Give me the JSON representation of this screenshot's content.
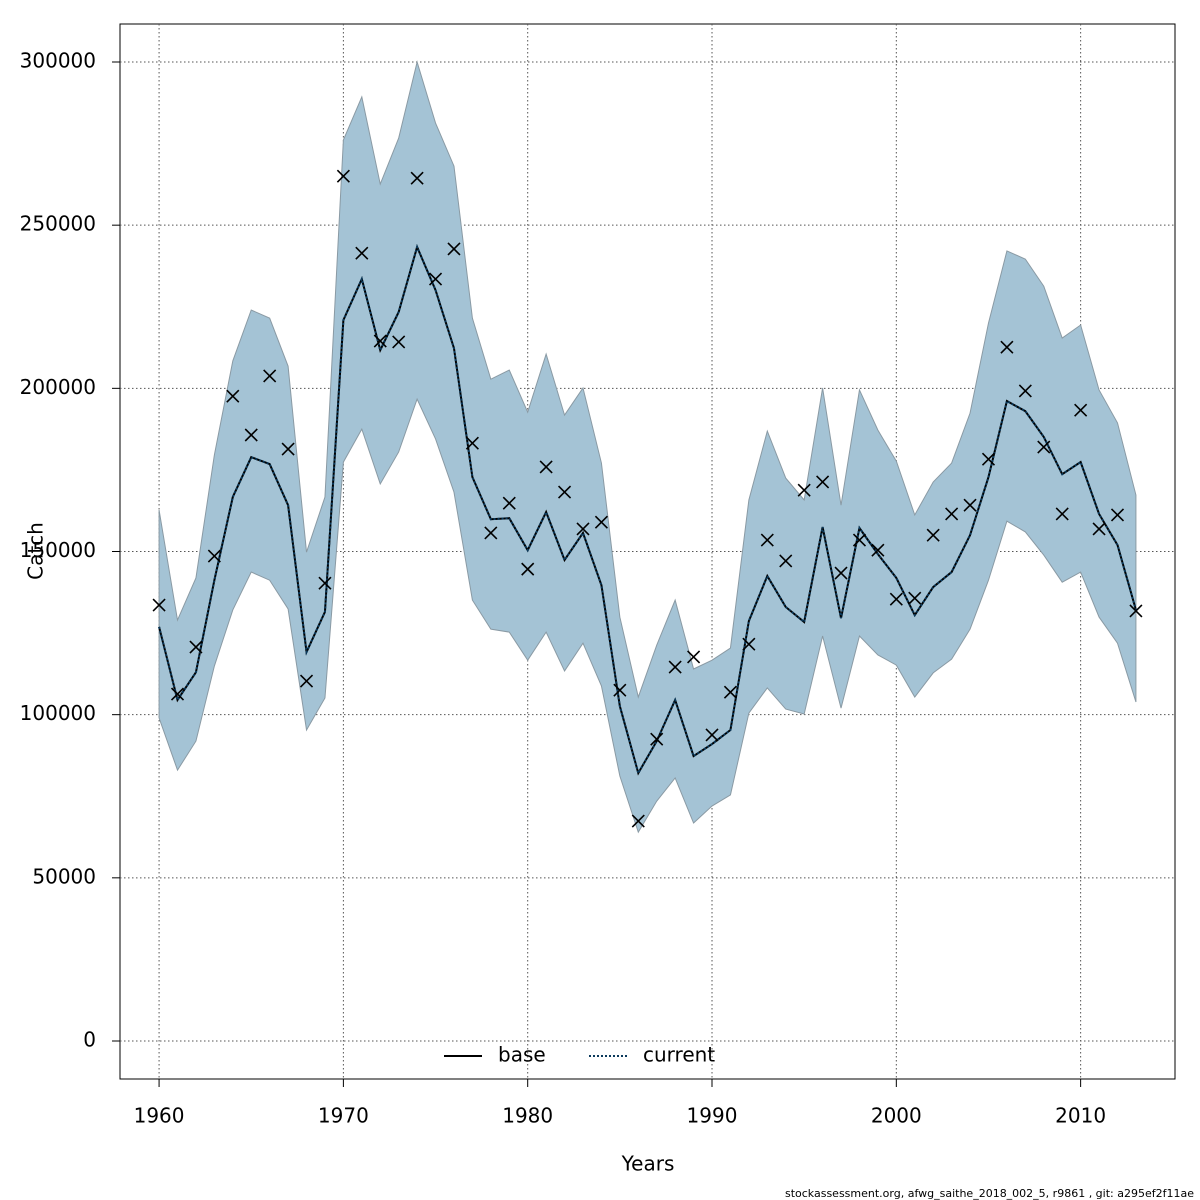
{
  "chart_data": {
    "type": "line",
    "x_label": "Years",
    "y_label": "Catch",
    "footer": "stockassessment.org, afwg_saithe_2018_002_5, r9861 , git: a295ef2f11ae",
    "x": [
      1960,
      1961,
      1962,
      1963,
      1964,
      1965,
      1966,
      1967,
      1968,
      1969,
      1970,
      1971,
      1972,
      1973,
      1974,
      1975,
      1976,
      1977,
      1978,
      1979,
      1980,
      1981,
      1982,
      1983,
      1984,
      1985,
      1986,
      1987,
      1988,
      1989,
      1990,
      1991,
      1992,
      1993,
      1994,
      1995,
      1996,
      1997,
      1998,
      1999,
      2000,
      2001,
      2002,
      2003,
      2004,
      2005,
      2006,
      2007,
      2008,
      2009,
      2010,
      2011,
      2012,
      2013
    ],
    "xlim": [
      1957.88,
      2015.12
    ],
    "ylim": [
      -11645,
      311645
    ],
    "xticks": [
      1960,
      1970,
      1980,
      1990,
      2000,
      2010
    ],
    "yticks": [
      0,
      50000,
      100000,
      150000,
      200000,
      250000,
      300000
    ],
    "grid": true,
    "legend": "bottom",
    "band_color": "#a4c3d5",
    "observed_color": "#000000",
    "band": {
      "upper": [
        162700,
        129000,
        141900,
        179600,
        208400,
        224000,
        221500,
        206800,
        149800,
        166700,
        276100,
        289300,
        262600,
        276700,
        300000,
        281300,
        268100,
        221500,
        202800,
        205600,
        192700,
        210500,
        191800,
        200100,
        177100,
        129900,
        105400,
        121300,
        135100,
        114000,
        116700,
        120400,
        165800,
        186900,
        172500,
        165800,
        200100,
        164200,
        199500,
        187200,
        177700,
        161200,
        171300,
        177100,
        192400,
        220000,
        242100,
        239600,
        231300,
        215400,
        219400,
        199500,
        189400,
        167300
      ],
      "lower": [
        99000,
        83000,
        91900,
        114900,
        132100,
        143700,
        141200,
        132400,
        95300,
        105100,
        177400,
        187500,
        170700,
        180500,
        196700,
        184500,
        168200,
        135100,
        126200,
        125300,
        116700,
        125300,
        113400,
        121900,
        108800,
        81200,
        64000,
        73500,
        80600,
        66800,
        72000,
        75400,
        100500,
        108200,
        101700,
        100200,
        124100,
        102000,
        124100,
        118300,
        115200,
        105400,
        112800,
        117000,
        126200,
        141200,
        159300,
        156000,
        148900,
        140600,
        143700,
        129900,
        121900,
        103900
      ]
    },
    "observed": [
      133600,
      106300,
      120700,
      148600,
      197600,
      185700,
      203800,
      181400,
      110300,
      140300,
      265000,
      241400,
      214500,
      214200,
      264400,
      233500,
      242700,
      183200,
      155700,
      164800,
      144600,
      175900,
      168200,
      156900,
      159000,
      107500,
      67400,
      92500,
      114600,
      117700,
      93800,
      106900,
      121600,
      153500,
      147100,
      168800,
      171300,
      143400,
      153500,
      150400,
      135400,
      135700,
      155000,
      161500,
      164200,
      178300,
      212600,
      199200,
      182000,
      161500,
      193300,
      156900,
      161200,
      131800
    ],
    "series": [
      {
        "name": "base",
        "color": "#000000",
        "dash": false,
        "values": [
          126900,
          104500,
          113000,
          141200,
          166700,
          178900,
          176800,
          164200,
          119200,
          131500,
          220900,
          233500,
          211700,
          223400,
          243300,
          230100,
          212300,
          172800,
          159900,
          160200,
          150400,
          162100,
          147400,
          155700,
          139700,
          102600,
          82100,
          91900,
          104500,
          87300,
          91000,
          95300,
          128700,
          142500,
          133000,
          128400,
          157500,
          129600,
          157200,
          149200,
          141900,
          130500,
          139100,
          143700,
          155000,
          172800,
          196100,
          193000,
          185100,
          173700,
          177400,
          161500,
          152000,
          132100
        ]
      },
      {
        "name": "current",
        "color": "#0b3a5c",
        "dash": true,
        "values": [
          126900,
          104500,
          113000,
          141200,
          166700,
          178900,
          176800,
          164200,
          119200,
          131500,
          220900,
          233500,
          211700,
          223400,
          243300,
          230100,
          212300,
          172800,
          159900,
          160200,
          150400,
          162100,
          147400,
          155700,
          139700,
          102600,
          82100,
          91900,
          104500,
          87300,
          91000,
          95300,
          128700,
          142500,
          133000,
          128400,
          157500,
          129600,
          157200,
          149200,
          141900,
          130500,
          139100,
          143700,
          155000,
          172800,
          196100,
          193000,
          185100,
          173700,
          177400,
          161500,
          152000,
          132100
        ]
      }
    ]
  }
}
